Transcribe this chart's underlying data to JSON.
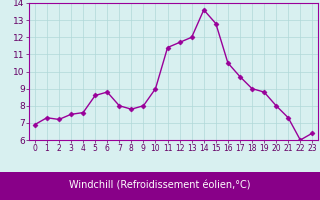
{
  "x": [
    0,
    1,
    2,
    3,
    4,
    5,
    6,
    7,
    8,
    9,
    10,
    11,
    12,
    13,
    14,
    15,
    16,
    17,
    18,
    19,
    20,
    21,
    22,
    23
  ],
  "y": [
    6.9,
    7.3,
    7.2,
    7.5,
    7.6,
    8.6,
    8.8,
    8.0,
    7.8,
    8.0,
    9.0,
    11.4,
    11.7,
    12.0,
    13.6,
    12.8,
    10.5,
    9.7,
    9.0,
    8.8,
    8.0,
    7.3,
    6.0,
    6.4
  ],
  "line_color": "#990099",
  "marker": "D",
  "marker_size": 2.5,
  "line_width": 1.0,
  "bg_color": "#d8f0f0",
  "grid_color": "#b0d8d8",
  "xlabel": "Windchill (Refroidissement éolien,°C)",
  "xlabel_color": "#ffffff",
  "xlabel_bg_color": "#880088",
  "tick_label_color": "#660066",
  "ylim": [
    6,
    14
  ],
  "xlim": [
    -0.5,
    23.5
  ],
  "xtick_fontsize": 5.5,
  "ytick_fontsize": 6.5,
  "xlabel_fontsize": 7.0,
  "border_color": "#990099"
}
